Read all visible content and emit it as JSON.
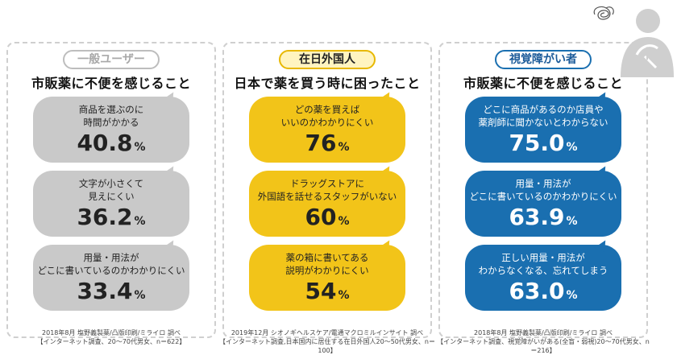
{
  "columns": [
    {
      "tag": "一般ユーザー",
      "heading": "市販薬に不便を感じること",
      "items": [
        {
          "text": [
            "商品を選ぶのに",
            "時間がかかる"
          ],
          "value": "40.8",
          "unit": "%"
        },
        {
          "text": [
            "文字が小さくて",
            "見えにくい"
          ],
          "value": "36.2",
          "unit": "%"
        },
        {
          "text": [
            "用量・用法が",
            "どこに書いているのかわかりにくい"
          ],
          "value": "33.4",
          "unit": "%"
        }
      ],
      "source": [
        "2018年8月 塩野義製薬/凸版印刷/ミライロ 調べ",
        "【インターネット調査、20～70代男女、n＝622】"
      ]
    },
    {
      "tag": "在日外国人",
      "heading": "日本で薬を買う時に困ったこと",
      "items": [
        {
          "text": [
            "どの薬を買えば",
            "いいのかわかりにくい"
          ],
          "value": "76",
          "unit": "%"
        },
        {
          "text": [
            "ドラッグストアに",
            "外国語を話せるスタッフがいない"
          ],
          "value": "60",
          "unit": "%"
        },
        {
          "text": [
            "薬の箱に書いてある",
            "説明がわかりにくい"
          ],
          "value": "54",
          "unit": "%"
        }
      ],
      "source": [
        "2019年12月 シオノギヘルスケア/電通マクロミルインサイト 調べ",
        "【インターネット調査,日本国内に居住する在日外国人20～50代男女、n＝100】"
      ]
    },
    {
      "tag": "視覚障がい者",
      "heading": "市販薬に不便を感じること",
      "items": [
        {
          "text": [
            "どこに商品があるのか店員や",
            "薬剤師に聞かないとわからない"
          ],
          "value": "75.0",
          "unit": "%"
        },
        {
          "text": [
            "用量・用法が",
            "どこに書いているのかわかりにくい"
          ],
          "value": "63.9",
          "unit": "%"
        },
        {
          "text": [
            "正しい用量・用法が",
            "わからなくなる、忘れてしまう"
          ],
          "value": "63.0",
          "unit": "%"
        }
      ],
      "source": [
        "2018年8月 塩野義製薬/凸版印刷/ミライロ 調べ",
        "【インターネット調査、視覚障がいがある(全盲・弱視)20～70代男女、n＝216】"
      ]
    }
  ],
  "icons": {
    "person": "confused-person-icon",
    "scribble": "confusion-scribble-icon"
  }
}
